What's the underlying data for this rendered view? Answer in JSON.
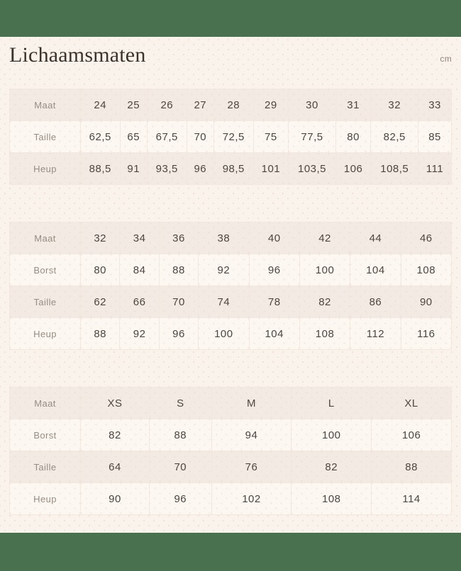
{
  "page": {
    "title": "Lichaamsmaten",
    "unit_label": "cm"
  },
  "colors": {
    "bar_green": "#4a714f",
    "page_background": "#faf3eb",
    "row_stripe": "#f3eae4",
    "row_plain": "#fdf7f1",
    "text_dark": "#4d453f",
    "text_muted": "#968d84"
  },
  "tables": [
    {
      "name": "jeans-sizes",
      "rows": [
        {
          "label": "Maat",
          "values": [
            "24",
            "25",
            "26",
            "27",
            "28",
            "29",
            "30",
            "31",
            "32",
            "33"
          ]
        },
        {
          "label": "Taille",
          "values": [
            "62,5",
            "65",
            "67,5",
            "70",
            "72,5",
            "75",
            "77,5",
            "80",
            "82,5",
            "85"
          ]
        },
        {
          "label": "Heup",
          "values": [
            "88,5",
            "91",
            "93,5",
            "96",
            "98,5",
            "101",
            "103,5",
            "106",
            "108,5",
            "111"
          ]
        }
      ]
    },
    {
      "name": "eu-sizes",
      "rows": [
        {
          "label": "Maat",
          "values": [
            "32",
            "34",
            "36",
            "38",
            "40",
            "42",
            "44",
            "46"
          ]
        },
        {
          "label": "Borst",
          "values": [
            "80",
            "84",
            "88",
            "92",
            "96",
            "100",
            "104",
            "108"
          ]
        },
        {
          "label": "Taille",
          "values": [
            "62",
            "66",
            "70",
            "74",
            "78",
            "82",
            "86",
            "90"
          ]
        },
        {
          "label": "Heup",
          "values": [
            "88",
            "92",
            "96",
            "100",
            "104",
            "108",
            "112",
            "116"
          ]
        }
      ]
    },
    {
      "name": "letter-sizes",
      "rows": [
        {
          "label": "Maat",
          "values": [
            "XS",
            "S",
            "M",
            "L",
            "XL"
          ]
        },
        {
          "label": "Borst",
          "values": [
            "82",
            "88",
            "94",
            "100",
            "106"
          ]
        },
        {
          "label": "Taille",
          "values": [
            "64",
            "70",
            "76",
            "82",
            "88"
          ]
        },
        {
          "label": "Heup",
          "values": [
            "90",
            "96",
            "102",
            "108",
            "114"
          ]
        }
      ]
    }
  ]
}
